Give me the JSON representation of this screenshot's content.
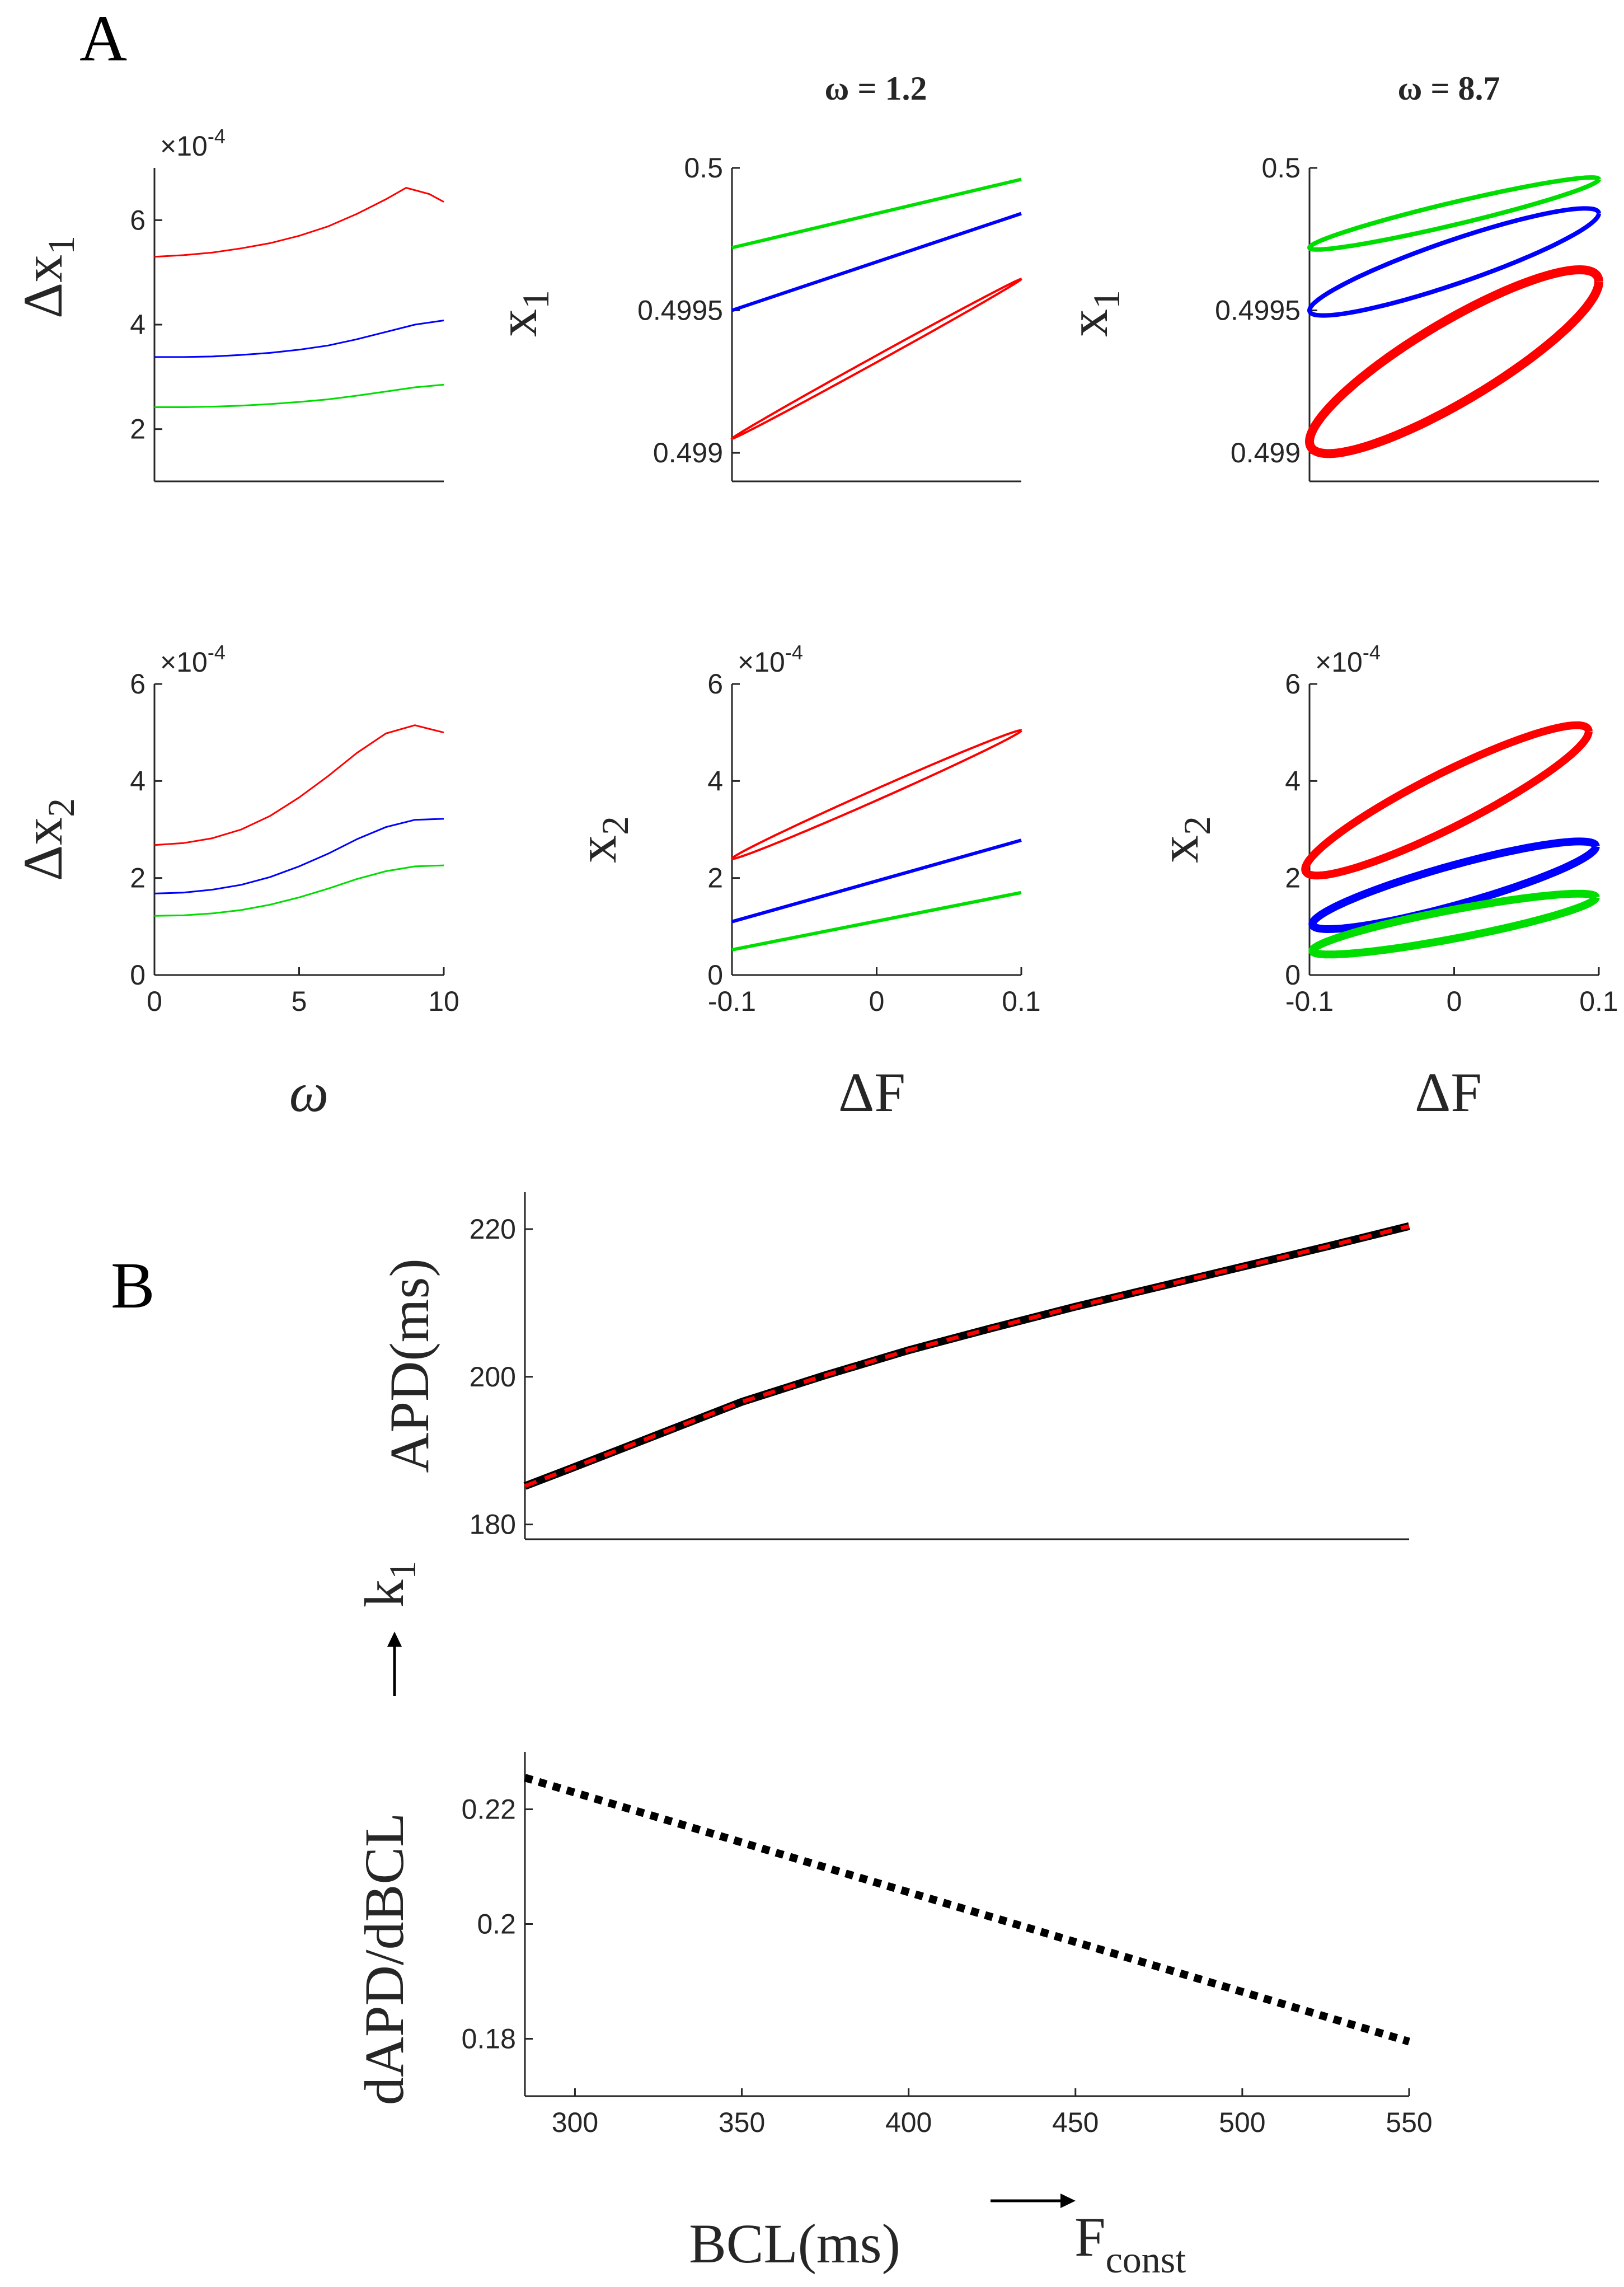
{
  "figure": {
    "panel_labels": [
      "A",
      "B"
    ],
    "col_titles": [
      "ω = 1.2",
      "ω = 8.7"
    ],
    "axis_text": {
      "omega": "ω",
      "deltaF": "ΔF",
      "delta": "Δx",
      "x": "x",
      "sub1": "1",
      "sub2": "2",
      "exp_base": "×10",
      "exp_pow": "-4",
      "apd": "APD(ms)",
      "slope": "dAPD/dBCL",
      "bcl": "BCL(ms)",
      "k": "k",
      "F": "F",
      "const": "const"
    }
  },
  "chart_data": [
    {
      "id": "p1",
      "type": "line",
      "xlabel": "ω",
      "ylabel": "Δx1",
      "exponent": "×10^-4",
      "xlim": [
        0,
        10
      ],
      "ylim": [
        1,
        7
      ],
      "yticks": [
        "2",
        "4",
        "6"
      ],
      "xticks": [],
      "series": [
        {
          "name": "red",
          "color": "#ff0000",
          "x": [
            0,
            1,
            2,
            3,
            4,
            5,
            6,
            7,
            8,
            8.7,
            9.5,
            10
          ],
          "y": [
            5.3,
            5.33,
            5.38,
            5.46,
            5.56,
            5.7,
            5.88,
            6.12,
            6.4,
            6.62,
            6.5,
            6.35
          ]
        },
        {
          "name": "blue",
          "color": "#0000ff",
          "x": [
            0,
            1,
            2,
            3,
            4,
            5,
            6,
            7,
            8,
            9,
            10
          ],
          "y": [
            3.38,
            3.38,
            3.39,
            3.42,
            3.46,
            3.52,
            3.6,
            3.72,
            3.86,
            4.0,
            4.08
          ]
        },
        {
          "name": "green",
          "color": "#00dd00",
          "x": [
            0,
            1,
            2,
            3,
            4,
            5,
            6,
            7,
            8,
            9,
            10
          ],
          "y": [
            2.42,
            2.42,
            2.43,
            2.45,
            2.48,
            2.52,
            2.57,
            2.64,
            2.72,
            2.8,
            2.85
          ]
        }
      ]
    },
    {
      "id": "p2",
      "type": "line",
      "title": "ω = 1.2",
      "xlabel": "ΔF",
      "ylabel": "x1",
      "xlim": [
        -0.1,
        0.1
      ],
      "ylim": [
        0.4989,
        0.5
      ],
      "yticks": [
        "0.499",
        "0.4995",
        "0.5"
      ],
      "xticks": [],
      "series": [
        {
          "name": "green",
          "color": "#00dd00",
          "x": [
            -0.1,
            0.1
          ],
          "y": [
            0.49972,
            0.49996
          ]
        },
        {
          "name": "blue",
          "color": "#0000ff",
          "x": [
            -0.1,
            0.1
          ],
          "y": [
            0.4995,
            0.49984
          ]
        },
        {
          "name": "red loop",
          "color": "#ff0000",
          "loop": true,
          "center": [
            0,
            0.49933
          ],
          "slope": 0.0028,
          "halfwidth": 1.2e-05
        }
      ]
    },
    {
      "id": "p3",
      "type": "line",
      "title": "ω = 8.7",
      "xlabel": "ΔF",
      "ylabel": "x1",
      "xlim": [
        -0.1,
        0.1
      ],
      "ylim": [
        0.4989,
        0.5
      ],
      "yticks": [
        "0.499",
        "0.4995",
        "0.5"
      ],
      "xticks": [],
      "series": [
        {
          "name": "green loop",
          "color": "#00dd00",
          "loop": true,
          "center": [
            0,
            0.49984
          ],
          "slope": 0.0012,
          "halfwidth": 4e-05
        },
        {
          "name": "blue loop",
          "color": "#0000ff",
          "loop": true,
          "center": [
            0,
            0.49967
          ],
          "slope": 0.0017,
          "halfwidth": 8e-05
        },
        {
          "name": "red loop",
          "color": "#ff0000",
          "loop": true,
          "center": [
            0,
            0.49932
          ],
          "slope": 0.0028,
          "halfwidth": 0.00016
        }
      ]
    },
    {
      "id": "p4",
      "type": "line",
      "xlabel": "ω",
      "ylabel": "Δx2",
      "exponent": "×10^-4",
      "xlim": [
        0,
        10
      ],
      "ylim": [
        0,
        6
      ],
      "yticks": [
        "0",
        "2",
        "4",
        "6"
      ],
      "xticks": [
        "0",
        "5",
        "10"
      ],
      "series": [
        {
          "name": "red",
          "color": "#ff0000",
          "x": [
            0,
            1,
            2,
            3,
            4,
            5,
            6,
            7,
            8,
            9,
            10
          ],
          "y": [
            2.68,
            2.72,
            2.82,
            3.0,
            3.28,
            3.66,
            4.1,
            4.58,
            4.98,
            5.15,
            5.0
          ]
        },
        {
          "name": "blue",
          "color": "#0000ff",
          "x": [
            0,
            1,
            2,
            3,
            4,
            5,
            6,
            7,
            8,
            9,
            10
          ],
          "y": [
            1.68,
            1.7,
            1.76,
            1.86,
            2.02,
            2.24,
            2.5,
            2.8,
            3.05,
            3.2,
            3.22
          ]
        },
        {
          "name": "green",
          "color": "#00dd00",
          "x": [
            0,
            1,
            2,
            3,
            4,
            5,
            6,
            7,
            8,
            9,
            10
          ],
          "y": [
            1.22,
            1.23,
            1.27,
            1.34,
            1.45,
            1.6,
            1.78,
            1.98,
            2.14,
            2.24,
            2.26
          ]
        }
      ]
    },
    {
      "id": "p5",
      "type": "line",
      "xlabel": "ΔF",
      "ylabel": "x2",
      "exponent": "×10^-4",
      "xlim": [
        -0.1,
        0.1
      ],
      "ylim": [
        0,
        6
      ],
      "yticks": [
        "0",
        "2",
        "4",
        "6"
      ],
      "xticks": [
        "-0.1",
        "0",
        "0.1"
      ],
      "series": [
        {
          "name": "red loop",
          "color": "#ff0000",
          "loop": true,
          "center": [
            0,
            3.72
          ],
          "slope": 13.2,
          "halfwidth": 0.12
        },
        {
          "name": "blue",
          "color": "#0000ff",
          "x": [
            -0.1,
            0.1
          ],
          "y": [
            1.1,
            2.78
          ]
        },
        {
          "name": "green",
          "color": "#00dd00",
          "x": [
            -0.1,
            0.1
          ],
          "y": [
            0.52,
            1.7
          ]
        }
      ]
    },
    {
      "id": "p6",
      "type": "line",
      "xlabel": "ΔF",
      "ylabel": "x2",
      "exponent": "×10^-4",
      "xlim": [
        -0.1,
        0.1
      ],
      "ylim": [
        0,
        6
      ],
      "yticks": [
        "0",
        "2",
        "4",
        "6"
      ],
      "xticks": [
        "-0.1",
        "0",
        "0.1"
      ],
      "series": [
        {
          "name": "red loop",
          "color": "#ff0000",
          "loop": true,
          "center": [
            -0.005,
            3.6
          ],
          "ellipse": [
            0.098,
            1.42,
            2.57,
            0.62
          ]
        },
        {
          "name": "blue loop",
          "color": "#0000ff",
          "loop": true,
          "center": [
            0,
            1.85
          ],
          "ellipse": [
            0.098,
            0.8,
            1.42,
            0.42
          ]
        },
        {
          "name": "green loop",
          "color": "#00dd00",
          "loop": true,
          "center": [
            0,
            1.05
          ],
          "ellipse": [
            0.098,
            0.55,
            0.98,
            0.3
          ]
        }
      ]
    },
    {
      "id": "p7",
      "type": "line",
      "ylabel": "APD(ms)",
      "xlim": [
        285,
        550
      ],
      "ylim": [
        178,
        225
      ],
      "yticks": [
        "180",
        "200",
        "220"
      ],
      "xticks": [],
      "series": [
        {
          "name": "APD (black)",
          "color": "#000000",
          "x": [
            285,
            300,
            325,
            350,
            375,
            400,
            425,
            450,
            475,
            500,
            525,
            550
          ],
          "y": [
            185.2,
            187.8,
            192.2,
            196.6,
            200.2,
            203.6,
            206.6,
            209.5,
            212.2,
            214.9,
            217.6,
            220.4
          ]
        },
        {
          "name": "fit (red dashed)",
          "color": "#ff0000",
          "dashed": true,
          "x": [
            285,
            300,
            325,
            350,
            375,
            400,
            425,
            450,
            475,
            500,
            525,
            550
          ],
          "y": [
            185.2,
            187.8,
            192.2,
            196.6,
            200.2,
            203.6,
            206.6,
            209.5,
            212.2,
            214.9,
            217.6,
            220.4
          ]
        }
      ]
    },
    {
      "id": "p8",
      "type": "line",
      "xlabel": "BCL(ms)",
      "ylabel": "dAPD/dBCL",
      "xlim": [
        285,
        550
      ],
      "ylim": [
        0.17,
        0.23
      ],
      "yticks": [
        "0.18",
        "0.2",
        "0.22"
      ],
      "xticks": [
        "300",
        "350",
        "400",
        "450",
        "500",
        "550"
      ],
      "series": [
        {
          "name": "slope",
          "color": "#000000",
          "dotted": true,
          "x": [
            285,
            550
          ],
          "y": [
            0.2255,
            0.1795
          ]
        }
      ]
    }
  ]
}
